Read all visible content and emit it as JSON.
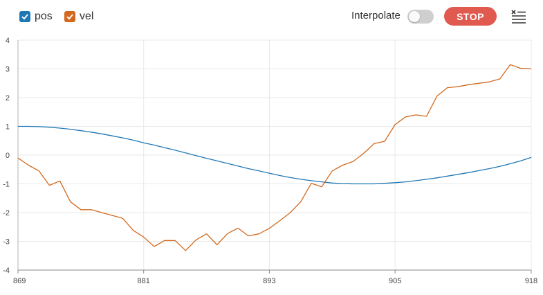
{
  "toolbar": {
    "legend": [
      {
        "label": "pos",
        "color": "#1f77b4",
        "checked": true
      },
      {
        "label": "vel",
        "color": "#d2691e",
        "checked": true
      }
    ],
    "interpolate_label": "Interpolate",
    "interpolate_on": false,
    "stop_label": "STOP",
    "stop_color": "#e05a4f",
    "menu_icon": "clear-list-icon"
  },
  "chart_data": {
    "type": "line",
    "xlim": [
      869,
      918
    ],
    "ylim": [
      -4,
      4
    ],
    "x_ticks": [
      "869",
      "881",
      "893",
      "905",
      "918"
    ],
    "y_ticks": [
      "4",
      "3",
      "2",
      "1",
      "0",
      "-1",
      "-2",
      "-3",
      "-4"
    ],
    "grid": true,
    "series": [
      {
        "name": "pos",
        "color": "#1f77b4",
        "x": [
          869,
          870,
          871,
          872,
          873,
          874,
          875,
          876,
          877,
          878,
          879,
          880,
          881,
          882,
          883,
          884,
          885,
          886,
          887,
          888,
          889,
          890,
          891,
          892,
          893,
          894,
          895,
          896,
          897,
          898,
          899,
          900,
          901,
          902,
          903,
          904,
          905,
          906,
          907,
          908,
          909,
          910,
          911,
          912,
          913,
          914,
          915,
          916,
          917,
          918
        ],
        "values": [
          1.0,
          1.0,
          0.99,
          0.97,
          0.94,
          0.9,
          0.85,
          0.8,
          0.74,
          0.67,
          0.6,
          0.52,
          0.43,
          0.35,
          0.26,
          0.17,
          0.08,
          -0.02,
          -0.11,
          -0.2,
          -0.29,
          -0.38,
          -0.47,
          -0.55,
          -0.63,
          -0.71,
          -0.78,
          -0.84,
          -0.89,
          -0.93,
          -0.97,
          -0.99,
          -1.0,
          -1.0,
          -1.0,
          -0.98,
          -0.96,
          -0.93,
          -0.89,
          -0.84,
          -0.79,
          -0.73,
          -0.67,
          -0.61,
          -0.54,
          -0.47,
          -0.39,
          -0.3,
          -0.2,
          -0.08
        ]
      },
      {
        "name": "vel",
        "color": "#d2691e",
        "x": [
          869,
          870,
          871,
          872,
          873,
          874,
          875,
          876,
          877,
          878,
          879,
          880,
          881,
          882,
          883,
          884,
          885,
          886,
          887,
          888,
          889,
          890,
          891,
          892,
          893,
          894,
          895,
          896,
          897,
          898,
          899,
          900,
          901,
          902,
          903,
          904,
          905,
          906,
          907,
          908,
          909,
          910,
          911,
          912,
          913,
          914,
          915,
          916,
          917,
          918
        ],
        "values": [
          -0.1,
          -0.35,
          -0.55,
          -1.05,
          -0.9,
          -1.62,
          -1.9,
          -1.9,
          -2.0,
          -2.1,
          -2.2,
          -2.62,
          -2.85,
          -3.18,
          -2.97,
          -2.97,
          -3.32,
          -2.95,
          -2.74,
          -3.12,
          -2.73,
          -2.54,
          -2.81,
          -2.74,
          -2.55,
          -2.28,
          -2.0,
          -1.62,
          -0.98,
          -1.1,
          -0.55,
          -0.35,
          -0.22,
          0.06,
          0.4,
          0.48,
          1.06,
          1.33,
          1.4,
          1.35,
          2.05,
          2.35,
          2.38,
          2.45,
          2.5,
          2.55,
          2.65,
          3.15,
          3.02,
          3.0
        ]
      }
    ]
  }
}
